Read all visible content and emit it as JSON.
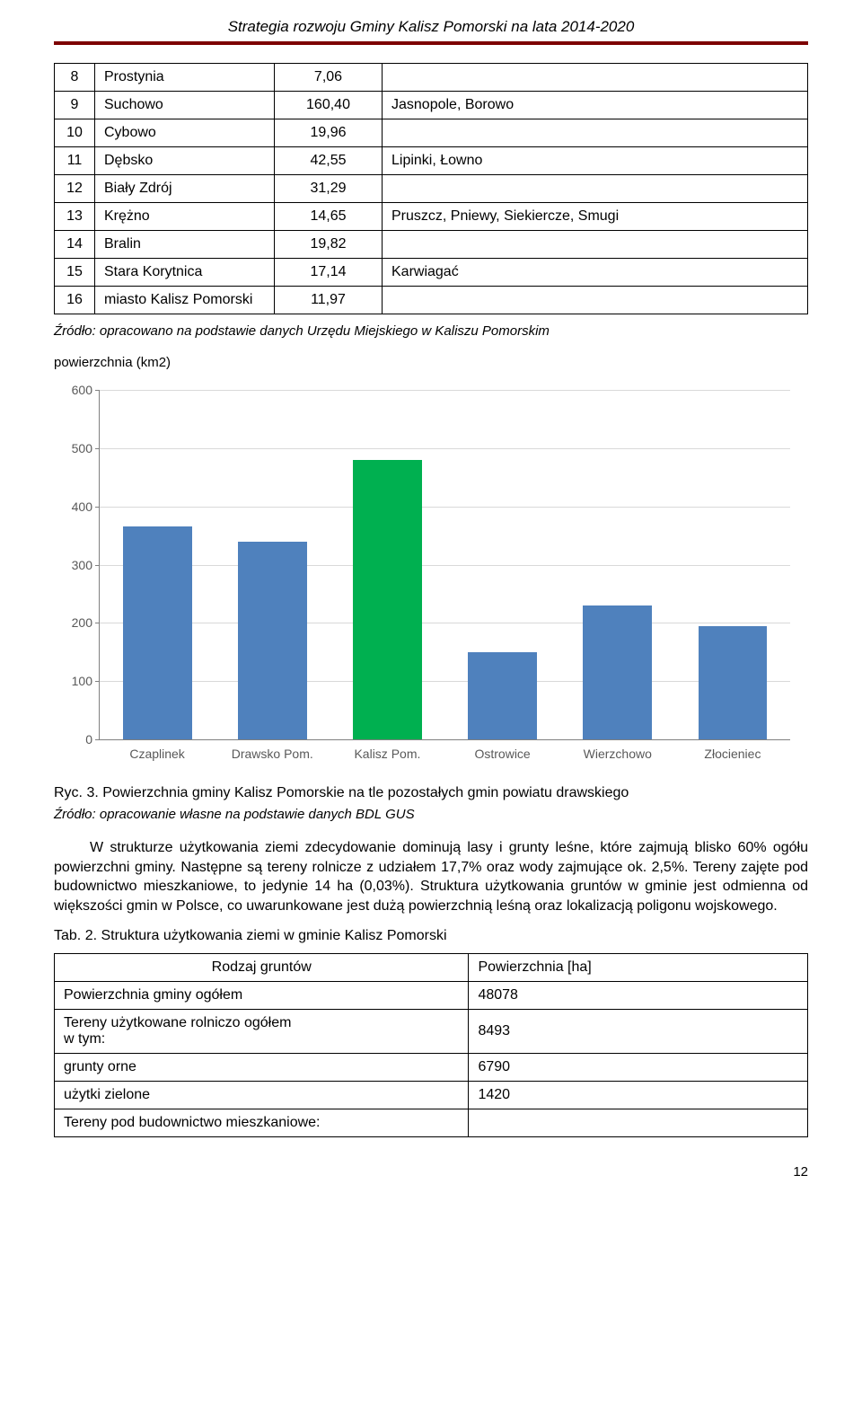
{
  "header": {
    "title": "Strategia rozwoju Gminy Kalisz Pomorski na lata 2014-2020"
  },
  "table1": {
    "rows": [
      {
        "n": "8",
        "place": "Prostynia",
        "val": "7,06",
        "note": ""
      },
      {
        "n": "9",
        "place": "Suchowo",
        "val": "160,40",
        "note": "Jasnopole, Borowo"
      },
      {
        "n": "10",
        "place": "Cybowo",
        "val": "19,96",
        "note": ""
      },
      {
        "n": "11",
        "place": "Dębsko",
        "val": "42,55",
        "note": "Lipinki, Łowno"
      },
      {
        "n": "12",
        "place": "Biały Zdrój",
        "val": "31,29",
        "note": ""
      },
      {
        "n": "13",
        "place": "Krężno",
        "val": "14,65",
        "note": "Pruszcz, Pniewy, Siekiercze, Smugi"
      },
      {
        "n": "14",
        "place": "Bralin",
        "val": "19,82",
        "note": ""
      },
      {
        "n": "15",
        "place": "Stara Korytnica",
        "val": "17,14",
        "note": "Karwiagać"
      },
      {
        "n": "16",
        "place": "miasto Kalisz Pomorski",
        "val": "11,97",
        "note": ""
      }
    ]
  },
  "source1": "Źródło: opracowano na podstawie danych Urzędu Miejskiego w Kaliszu Pomorskim",
  "chart": {
    "title": "powierzchnia (km2)",
    "type": "bar",
    "ymax": 600,
    "ystep": 100,
    "yticks": [
      "0",
      "100",
      "200",
      "300",
      "400",
      "500",
      "600"
    ],
    "categories": [
      "Czaplinek",
      "Drawsko Pom.",
      "Kalisz Pom.",
      "Ostrowice",
      "Wierzchowo",
      "Złocieniec"
    ],
    "values": [
      365,
      340,
      480,
      150,
      230,
      195
    ],
    "bar_colors": [
      "#4f81bd",
      "#4f81bd",
      "#00b050",
      "#4f81bd",
      "#4f81bd",
      "#4f81bd"
    ],
    "grid_color": "#d9d9d9",
    "axis_color": "#808080"
  },
  "caption1": "Ryc. 3. Powierzchnia gminy Kalisz Pomorskie na tle pozostałych gmin powiatu drawskiego",
  "source2": "Źródło: opracowanie własne na podstawie danych BDL GUS",
  "paragraph1": "W strukturze użytkowania ziemi zdecydowanie dominują lasy i grunty leśne, które zajmują blisko 60% ogółu powierzchni gminy. Następne są tereny rolnicze z udziałem 17,7% oraz wody zajmujące ok. 2,5%. Tereny zajęte pod budownictwo mieszkaniowe, to jedynie 14 ha (0,03%). Struktura użytkowania gruntów w gminie jest odmienna od większości gmin w Polsce, co uwarunkowane jest dużą powierzchnią leśną oraz lokalizacją poligonu wojskowego.",
  "tab2_caption": "Tab. 2. Struktura użytkowania ziemi w gminie Kalisz Pomorski",
  "table2": {
    "header": {
      "c1": "Rodzaj gruntów",
      "c2": "Powierzchnia [ha]"
    },
    "rows": [
      {
        "label": "Powierzchnia gminy ogółem",
        "val": "48078"
      },
      {
        "label": "Tereny użytkowane rolniczo ogółem\nw tym:",
        "val": "8493"
      },
      {
        "label": "grunty orne",
        "val": "6790"
      },
      {
        "label": "użytki zielone",
        "val": "1420"
      },
      {
        "label": "Tereny pod budownictwo mieszkaniowe:",
        "val": ""
      }
    ]
  },
  "page_number": "12"
}
